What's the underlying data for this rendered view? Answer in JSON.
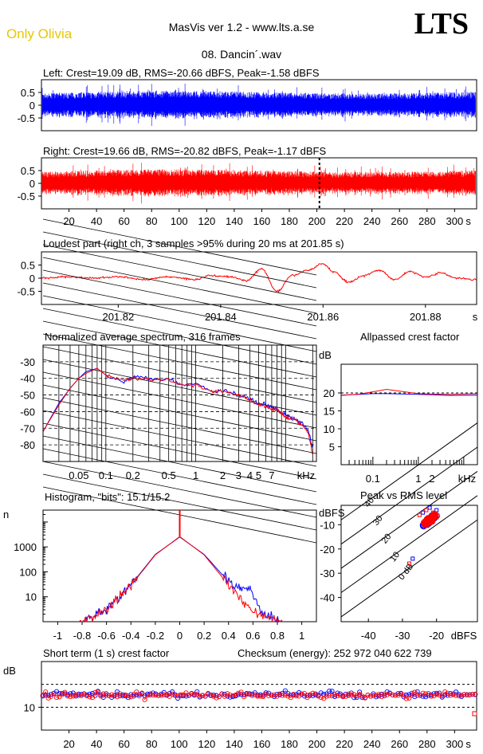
{
  "header": {
    "artist": "Only Olivia",
    "app_title": "MasVis ver 1.2 - www.lts.a.se",
    "logo": "LTS",
    "file_name": "08. Dancin´.wav"
  },
  "colors": {
    "left": "#0000ff",
    "right": "#ff0000",
    "grid": "#000000"
  },
  "chart_data": [
    {
      "id": "left",
      "type": "area",
      "title": "Left: Crest=19.09 dB, RMS=-20.66 dBFS, Peak=-1.58 dBFS",
      "yticks": [
        "0.5",
        "0",
        "-0.5"
      ],
      "ylim": [
        -1,
        1
      ],
      "xlim": [
        0,
        316
      ],
      "series": [
        {
          "color": "#0000ff",
          "envelope": 0.52
        }
      ]
    },
    {
      "id": "right",
      "type": "area",
      "title": "Right: Crest=19.66 dB, RMS=-20.82 dBFS, Peak=-1.17 dBFS",
      "yticks": [
        "0.5",
        "0",
        "-0.5"
      ],
      "ylim": [
        -1,
        1
      ],
      "xlim": [
        0,
        316
      ],
      "marker_x": 201.85,
      "xticks": [
        "20",
        "40",
        "60",
        "80",
        "100",
        "120",
        "140",
        "160",
        "180",
        "200",
        "220",
        "240",
        "260",
        "280",
        "300",
        "s"
      ],
      "series": [
        {
          "color": "#ff0000",
          "envelope": 0.5
        }
      ]
    },
    {
      "id": "loudest",
      "type": "line",
      "title": "Loudest part (right ch, 3 samples >95% during 20 ms at 201.85 s)",
      "yticks": [
        "0.5",
        "0",
        "-0.5"
      ],
      "ylim": [
        -1,
        1
      ],
      "xlim": [
        201.805,
        201.89
      ],
      "xticks": [
        "201.82",
        "201.84",
        "201.86",
        "201.88",
        "s"
      ],
      "x": [
        201.805,
        201.81,
        201.815,
        201.82,
        201.825,
        201.83,
        201.835,
        201.838,
        201.842,
        201.845,
        201.848,
        201.851,
        201.854,
        201.857,
        201.86,
        201.862,
        201.865,
        201.868,
        201.871,
        201.874,
        201.877,
        201.88,
        201.883,
        201.886,
        201.89
      ],
      "values": [
        0.0,
        0.05,
        0.0,
        0.05,
        -0.05,
        0.05,
        -0.05,
        0.1,
        0.05,
        -0.1,
        0.35,
        -0.5,
        0.1,
        0.3,
        0.55,
        0.25,
        -0.15,
        0.1,
        0.3,
        -0.05,
        0.25,
        0.05,
        0.2,
        0.0,
        -0.05
      ]
    },
    {
      "id": "spectrum",
      "type": "line",
      "title": "Normalized average spectrum, 316 frames",
      "ylabel": "dB",
      "yticks": [
        "-30",
        "-40",
        "-50",
        "-60",
        "-70",
        "-80"
      ],
      "ylim": [
        -90,
        -20
      ],
      "xticks": [
        "0.05",
        "0.1",
        "0.2",
        "0.5",
        "1",
        "2",
        "3",
        "4",
        "5",
        "7",
        "kHz"
      ],
      "x": [
        0.02,
        0.03,
        0.04,
        0.05,
        0.06,
        0.08,
        0.1,
        0.15,
        0.2,
        0.3,
        0.5,
        0.7,
        1,
        1.5,
        2,
        3,
        4,
        5,
        6,
        7,
        8,
        9,
        10,
        11,
        13,
        15,
        18,
        20
      ],
      "series": [
        {
          "name": "",
          "color": "#0000ff",
          "values": [
            -72,
            -55,
            -46,
            -40,
            -36,
            -34,
            -38,
            -42,
            -39,
            -40,
            -40,
            -44,
            -43,
            -48,
            -47,
            -50,
            -52,
            -55,
            -56,
            -57,
            -58,
            -61,
            -62,
            -63,
            -65,
            -67,
            -72,
            -83
          ]
        },
        {
          "name": "",
          "color": "#ff0000",
          "values": [
            -72,
            -56,
            -46,
            -40,
            -37,
            -34,
            -38,
            -41,
            -40,
            -41,
            -41,
            -44,
            -44,
            -48,
            -48,
            -50,
            -53,
            -56,
            -57,
            -58,
            -59,
            -61,
            -63,
            -64,
            -65,
            -68,
            -73,
            -86
          ]
        }
      ]
    },
    {
      "id": "allpassed",
      "type": "line",
      "title": "Allpassed crest factor",
      "ylabel": "dB",
      "yticks": [
        "20",
        "15",
        "10",
        "5"
      ],
      "ylim": [
        0,
        28
      ],
      "xticks": [
        "0.1",
        "1",
        "2",
        "kHz"
      ],
      "x": [
        0.02,
        0.05,
        0.1,
        0.2,
        0.5,
        1,
        2,
        5,
        20
      ],
      "series": [
        {
          "name": "",
          "color": "#0000ff",
          "values": [
            19.4,
            19.6,
            19.8,
            19.8,
            19.7,
            19.6,
            19.5,
            19.3,
            19.4
          ]
        },
        {
          "name": "",
          "color": "#ff0000",
          "values": [
            19.3,
            19.7,
            20.3,
            21,
            20.3,
            19.8,
            19.7,
            19.6,
            19.8
          ]
        }
      ]
    },
    {
      "id": "histogram",
      "type": "line",
      "title": "Histogram, \"bits\": 15.1/15.2",
      "ylabel": "n",
      "yticks": [
        "1000",
        "100",
        "10"
      ],
      "ylim": [
        1,
        30000
      ],
      "xticks": [
        "-1",
        "-0.8",
        "-0.6",
        "-0.4",
        "-0.2",
        "0",
        "0.2",
        "0.4",
        "0.6",
        "0.8",
        "1"
      ],
      "x": [
        -0.8,
        -0.6,
        -0.4,
        -0.2,
        0,
        0.2,
        0.4,
        0.5,
        0.55,
        0.6,
        0.65,
        0.8
      ],
      "series": [
        {
          "name": "",
          "color": "#0000ff",
          "values": [
            1,
            3,
            30,
            500,
            2500,
            500,
            40,
            20,
            25,
            15,
            3,
            1
          ]
        },
        {
          "name": "",
          "color": "#ff0000",
          "values": [
            1,
            3,
            28,
            480,
            2600,
            480,
            30,
            8,
            5,
            3,
            2,
            1
          ]
        }
      ]
    },
    {
      "id": "peak_vs_rms",
      "type": "scatter",
      "title": "Peak vs RMS level",
      "ylabel": "dBFS",
      "xlabel": "dBFS",
      "yticks": [
        "-10",
        "-20",
        "-30",
        "-40"
      ],
      "ylim": [
        -50,
        -2
      ],
      "xticks": [
        "-40",
        "-30",
        "-20"
      ],
      "xlim": [
        -48,
        -8
      ],
      "diag_labels": [
        "40",
        "30",
        "20",
        "10",
        "0 dB"
      ],
      "series": [
        {
          "name": "",
          "color": "#0000ff",
          "points": [
            [
              -22,
              -3
            ],
            [
              -24,
              -5
            ],
            [
              -20,
              -4
            ],
            [
              -27,
              -24
            ]
          ]
        },
        {
          "name": "",
          "color": "#ff0000",
          "points": [
            [
              -23,
              -4
            ],
            [
              -21,
              -5
            ],
            [
              -25,
              -6
            ],
            [
              -20,
              -7
            ],
            [
              -28,
              -26
            ]
          ]
        }
      ]
    },
    {
      "id": "short_term_crest",
      "type": "scatter",
      "title": "Short term (1 s) crest factor",
      "annotation": "Checksum (energy):  252 972 040 622 739",
      "ylabel": "dB",
      "yticks": [
        "10"
      ],
      "ylim": [
        0,
        30
      ],
      "xlim": [
        0,
        316
      ],
      "xticks": [
        "20",
        "40",
        "60",
        "80",
        "100",
        "120",
        "140",
        "160",
        "180",
        "200",
        "220",
        "240",
        "260",
        "280",
        "300",
        "s"
      ],
      "series": [
        {
          "name": "",
          "color": "#0000ff",
          "mean": 15.5
        },
        {
          "name": "",
          "color": "#ff0000",
          "mean": 15.2
        }
      ]
    }
  ]
}
